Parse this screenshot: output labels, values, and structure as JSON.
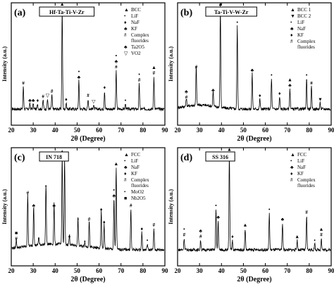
{
  "chart_data": [
    {
      "type": "line",
      "panel_label": "(a)",
      "sample": "Hf-Ta-Ti-V-Zr",
      "xlabel": "2θ (Degree)",
      "ylabel": "Intensity (a.u.)",
      "xlim": [
        20,
        90
      ],
      "xticks": [
        "20",
        "30",
        "40",
        "50",
        "60",
        "70",
        "80",
        "90"
      ],
      "legend": [
        {
          "symbol": "▲",
          "text": "BCC"
        },
        {
          "symbol": "•",
          "text": "LiF"
        },
        {
          "symbol": "♦",
          "text": "NaF"
        },
        {
          "symbol": "♣",
          "text": "KF"
        },
        {
          "symbol": "#",
          "text": "Complex fluorides"
        },
        {
          "symbol": "♣",
          "text": "Ta2O5"
        },
        {
          "symbol": "▽",
          "text": "VO2"
        }
      ],
      "peaks": [
        {
          "x": 25.5,
          "h": 0.22,
          "mark": "#"
        },
        {
          "x": 28.5,
          "h": 0.05,
          "mark": "♣"
        },
        {
          "x": 30.0,
          "h": 0.05,
          "mark": "♣"
        },
        {
          "x": 32.0,
          "h": 0.05,
          "mark": "♦"
        },
        {
          "x": 34.5,
          "h": 0.09,
          "mark": "#"
        },
        {
          "x": 36.5,
          "h": 0.1,
          "mark": "▽"
        },
        {
          "x": 38.5,
          "h": 0.14,
          "mark": "#"
        },
        {
          "x": 43.2,
          "h": 1.0,
          "mark": "▲"
        },
        {
          "x": 45.0,
          "h": 0.06,
          "mark": "♦"
        },
        {
          "x": 50.8,
          "h": 0.28,
          "mark": "•♣"
        },
        {
          "x": 55.0,
          "h": 0.1,
          "mark": "#"
        },
        {
          "x": 57.5,
          "h": 0.04,
          "mark": "▽"
        },
        {
          "x": 62.5,
          "h": 0.18,
          "mark": "♦"
        },
        {
          "x": 67.8,
          "h": 0.38,
          "mark": "•♣#"
        },
        {
          "x": 72.0,
          "h": 0.05,
          "mark": "•"
        },
        {
          "x": 78.3,
          "h": 0.25,
          "mark": "•#"
        },
        {
          "x": 85.0,
          "h": 0.32,
          "mark": "▲#"
        }
      ]
    },
    {
      "type": "line",
      "panel_label": "(b)",
      "sample": "Ta-Ti-V-W-Zr",
      "xlabel": "2θ (Degree)",
      "ylabel": "Intensity (a.u.)",
      "xlim": [
        20,
        90
      ],
      "xticks": [
        "20",
        "30",
        "40",
        "50",
        "60",
        "70",
        "80",
        "90"
      ],
      "legend": [
        {
          "symbol": "▲",
          "text": "BCC 1"
        },
        {
          "symbol": "▼",
          "text": "BCC 2"
        },
        {
          "symbol": "•",
          "text": "LiF"
        },
        {
          "symbol": "♣",
          "text": "NaF"
        },
        {
          "symbol": "♦",
          "text": "KF"
        },
        {
          "symbol": "#",
          "text": "Complex fluorides"
        }
      ],
      "peaks": [
        {
          "x": 24.0,
          "h": 0.08,
          "mark": "♣#"
        },
        {
          "x": 28.5,
          "h": 0.38,
          "mark": "#"
        },
        {
          "x": 36.2,
          "h": 0.15,
          "mark": "♣"
        },
        {
          "x": 39.5,
          "h": 1.0,
          "mark": "▲"
        },
        {
          "x": 47.2,
          "h": 0.82,
          "mark": "•"
        },
        {
          "x": 54.0,
          "h": 0.35,
          "mark": "♣"
        },
        {
          "x": 57.5,
          "h": 0.1,
          "mark": "♦"
        },
        {
          "x": 62.8,
          "h": 0.3,
          "mark": "•"
        },
        {
          "x": 66.5,
          "h": 0.12,
          "mark": "♦"
        },
        {
          "x": 71.2,
          "h": 0.2,
          "mark": "▲♣"
        },
        {
          "x": 78.8,
          "h": 0.3,
          "mark": "•"
        },
        {
          "x": 81.0,
          "h": 0.22,
          "mark": "#"
        },
        {
          "x": 85.0,
          "h": 0.06,
          "mark": "▼"
        }
      ]
    },
    {
      "type": "line",
      "panel_label": "(c)",
      "sample": "IN 718",
      "xlabel": "2θ (Degree)",
      "ylabel": "Intensity (a.u.)",
      "xlim": [
        20,
        90
      ],
      "xticks": [
        "20",
        "30",
        "40",
        "50",
        "60",
        "70",
        "80",
        "90"
      ],
      "legend": [
        {
          "symbol": "▲",
          "text": "FCC"
        },
        {
          "symbol": "•",
          "text": "LiF"
        },
        {
          "symbol": "♣",
          "text": "NaF"
        },
        {
          "symbol": "♦",
          "text": "KF"
        },
        {
          "symbol": "#",
          "text": "Complex fluorides"
        },
        {
          "symbol": "•",
          "text": "MoO2"
        },
        {
          "symbol": "■",
          "text": "Nb2O5"
        }
      ],
      "peaks": [
        {
          "x": 22.3,
          "h": 0.08,
          "mark": "■#"
        },
        {
          "x": 27.5,
          "h": 0.55,
          "mark": "#"
        },
        {
          "x": 30.2,
          "h": 0.42,
          "mark": "♣"
        },
        {
          "x": 32.5,
          "h": 0.08,
          "mark": "•"
        },
        {
          "x": 35.8,
          "h": 0.62,
          "mark": "•"
        },
        {
          "x": 39.5,
          "h": 0.42,
          "mark": "♣"
        },
        {
          "x": 43.2,
          "h": 0.92,
          "mark": "▲♣"
        },
        {
          "x": 44.3,
          "h": 0.88,
          "mark": "•"
        },
        {
          "x": 46.5,
          "h": 0.1,
          "mark": "♦"
        },
        {
          "x": 50.4,
          "h": 0.28,
          "mark": "•"
        },
        {
          "x": 53.5,
          "h": 0.05,
          "mark": "•"
        },
        {
          "x": 55.5,
          "h": 0.28,
          "mark": "#"
        },
        {
          "x": 61.0,
          "h": 0.38,
          "mark": "♦"
        },
        {
          "x": 62.3,
          "h": 0.25,
          "mark": "♦"
        },
        {
          "x": 66.8,
          "h": 0.52,
          "mark": "•♣"
        },
        {
          "x": 67.8,
          "h": 0.85,
          "mark": "▲"
        },
        {
          "x": 74.5,
          "h": 0.42,
          "mark": "#"
        },
        {
          "x": 79.5,
          "h": 0.18,
          "mark": "♦"
        },
        {
          "x": 82.0,
          "h": 0.06,
          "mark": "•"
        },
        {
          "x": 85.0,
          "h": 0.22,
          "mark": "#"
        }
      ]
    },
    {
      "type": "line",
      "panel_label": "(d)",
      "sample": "SS 316",
      "xlabel": "2θ (Degree)",
      "ylabel": "Intensity (a.u.)",
      "xlim": [
        20,
        90
      ],
      "xticks": [
        "20",
        "30",
        "40",
        "50",
        "60",
        "70",
        "80",
        "90"
      ],
      "legend": [
        {
          "symbol": "▲",
          "text": "FCC"
        },
        {
          "symbol": "•",
          "text": "LiF"
        },
        {
          "symbol": "♣",
          "text": "NaF"
        },
        {
          "symbol": "♦",
          "text": "KF"
        },
        {
          "symbol": "#",
          "text": "Complex fluorides"
        }
      ],
      "peaks": [
        {
          "x": 23.0,
          "h": 0.12,
          "mark": "•#"
        },
        {
          "x": 30.5,
          "h": 0.1,
          "mark": "♣#"
        },
        {
          "x": 37.5,
          "h": 0.42,
          "mark": "•"
        },
        {
          "x": 38.5,
          "h": 0.3,
          "mark": "♣"
        },
        {
          "x": 43.6,
          "h": 1.0,
          "mark": "▲"
        },
        {
          "x": 45.0,
          "h": 0.1,
          "mark": "♦"
        },
        {
          "x": 50.8,
          "h": 0.22,
          "mark": "▲"
        },
        {
          "x": 61.8,
          "h": 0.38,
          "mark": "•"
        },
        {
          "x": 67.8,
          "h": 0.28,
          "mark": "♣"
        },
        {
          "x": 74.5,
          "h": 0.1,
          "mark": "▲"
        },
        {
          "x": 78.8,
          "h": 0.35,
          "mark": "#"
        },
        {
          "x": 82.5,
          "h": 0.06,
          "mark": "•"
        },
        {
          "x": 85.5,
          "h": 0.12,
          "mark": "▲#"
        }
      ]
    }
  ]
}
